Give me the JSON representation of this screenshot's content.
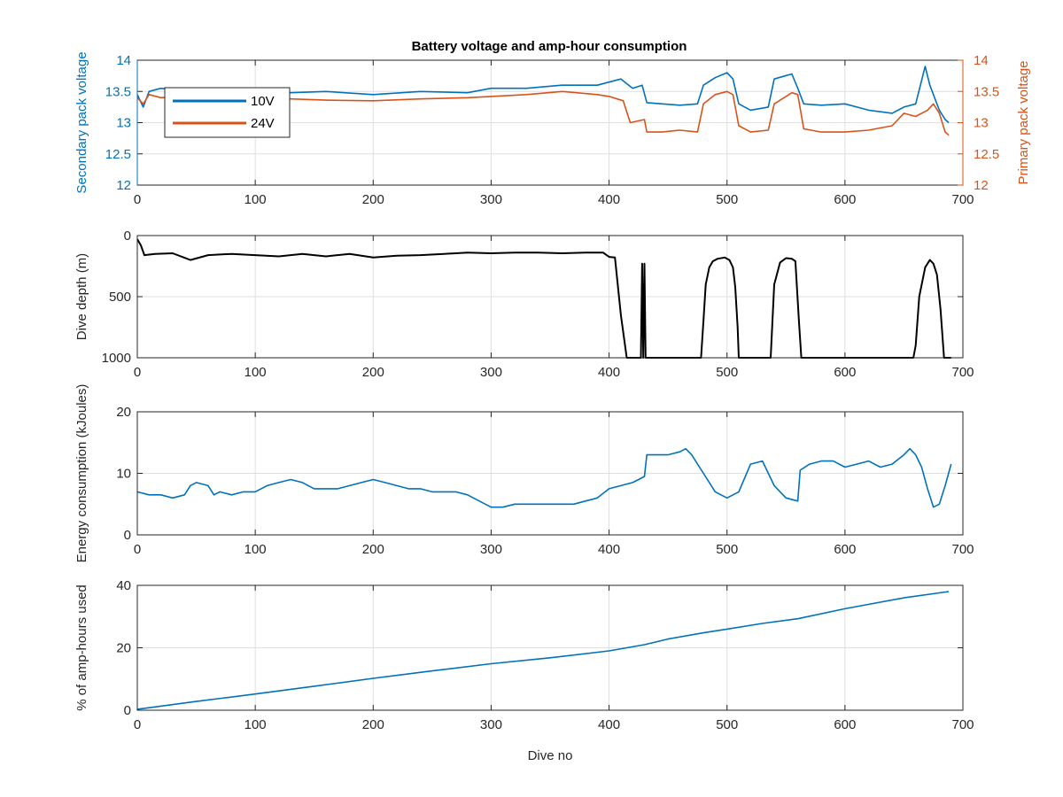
{
  "figure": {
    "title": "Battery voltage and amp-hour consumption"
  },
  "colors": {
    "secondary": "#0072BD",
    "primary": "#D95319",
    "depth": "#000000",
    "axes": "#262626",
    "grid": "#dfdfdf"
  },
  "chart_data": [
    {
      "type": "line",
      "id": "voltage",
      "title": "Battery voltage and amp-hour consumption",
      "xlabel": "",
      "ylabel": "Secondary pack voltage",
      "ylabel_right": "Primary pack voltage",
      "xlim": [
        0,
        700
      ],
      "ylim": [
        12,
        14
      ],
      "ylim_right": [
        12,
        14
      ],
      "xticks": [
        "0",
        "100",
        "200",
        "300",
        "400",
        "500",
        "600",
        "700"
      ],
      "yticks": [
        "12",
        "12.5",
        "13",
        "13.5",
        "14"
      ],
      "yticks_right": [
        "12",
        "12.5",
        "13",
        "13.5",
        "14"
      ],
      "grid": true,
      "legend_position": "top-left",
      "series": [
        {
          "name": "10V",
          "axis": "left",
          "x": [
            0,
            5,
            10,
            20,
            40,
            60,
            80,
            100,
            130,
            160,
            200,
            240,
            280,
            300,
            330,
            360,
            390,
            400,
            410,
            420,
            428,
            432,
            445,
            460,
            475,
            480,
            490,
            500,
            505,
            510,
            520,
            535,
            540,
            555,
            560,
            565,
            580,
            600,
            620,
            640,
            650,
            660,
            668,
            672,
            676,
            680,
            685,
            688
          ],
          "y": [
            13.45,
            13.25,
            13.5,
            13.55,
            13.5,
            13.5,
            13.52,
            13.5,
            13.48,
            13.5,
            13.45,
            13.5,
            13.48,
            13.55,
            13.55,
            13.6,
            13.6,
            13.65,
            13.7,
            13.55,
            13.6,
            13.32,
            13.3,
            13.28,
            13.3,
            13.6,
            13.72,
            13.8,
            13.7,
            13.3,
            13.2,
            13.25,
            13.7,
            13.78,
            13.55,
            13.3,
            13.28,
            13.3,
            13.2,
            13.15,
            13.25,
            13.3,
            13.9,
            13.6,
            13.4,
            13.2,
            13.05,
            13.0
          ]
        },
        {
          "name": "24V",
          "axis": "right",
          "x": [
            0,
            5,
            10,
            20,
            40,
            60,
            80,
            100,
            130,
            160,
            200,
            240,
            280,
            300,
            330,
            360,
            390,
            400,
            412,
            418,
            430,
            432,
            445,
            460,
            475,
            480,
            490,
            500,
            505,
            510,
            520,
            535,
            540,
            555,
            560,
            565,
            580,
            600,
            620,
            640,
            650,
            660,
            670,
            675,
            680,
            685,
            688
          ],
          "y": [
            13.4,
            13.3,
            13.45,
            13.4,
            13.42,
            13.4,
            13.42,
            13.4,
            13.38,
            13.36,
            13.35,
            13.38,
            13.4,
            13.42,
            13.45,
            13.5,
            13.45,
            13.42,
            13.35,
            13.0,
            13.05,
            12.85,
            12.85,
            12.88,
            12.85,
            13.3,
            13.45,
            13.5,
            13.45,
            12.95,
            12.85,
            12.88,
            13.3,
            13.48,
            13.45,
            12.9,
            12.85,
            12.85,
            12.88,
            12.95,
            13.15,
            13.1,
            13.2,
            13.3,
            13.15,
            12.85,
            12.8
          ]
        }
      ]
    },
    {
      "type": "line",
      "id": "depth",
      "xlabel": "",
      "ylabel": "Dive depth (m)",
      "xlim": [
        0,
        700
      ],
      "ylim": [
        0,
        1000
      ],
      "y_reversed": true,
      "xticks": [
        "0",
        "100",
        "200",
        "300",
        "400",
        "500",
        "600",
        "700"
      ],
      "yticks": [
        "0",
        "500",
        "1000"
      ],
      "grid": true,
      "series": [
        {
          "name": "",
          "x": [
            0,
            3,
            6,
            15,
            30,
            45,
            60,
            80,
            100,
            120,
            140,
            160,
            180,
            200,
            220,
            240,
            260,
            280,
            300,
            320,
            340,
            360,
            380,
            395,
            400,
            405,
            410,
            415,
            425,
            427,
            428,
            429,
            430,
            431,
            435,
            460,
            478,
            480,
            482,
            485,
            488,
            492,
            498,
            502,
            505,
            507,
            509,
            510,
            511,
            530,
            537,
            540,
            545,
            550,
            555,
            558,
            561,
            563,
            565,
            600,
            640,
            658,
            660,
            663,
            668,
            672,
            675,
            678,
            681,
            684,
            690
          ],
          "y": [
            30,
            80,
            160,
            150,
            145,
            200,
            160,
            150,
            160,
            170,
            150,
            170,
            150,
            180,
            165,
            160,
            150,
            140,
            145,
            140,
            140,
            145,
            140,
            140,
            175,
            180,
            650,
            1000,
            1000,
            1000,
            230,
            1000,
            230,
            1000,
            1000,
            1000,
            1000,
            700,
            400,
            260,
            210,
            190,
            180,
            200,
            260,
            420,
            750,
            1000,
            1000,
            1000,
            1000,
            400,
            220,
            185,
            190,
            210,
            700,
            1000,
            1000,
            1000,
            1000,
            1000,
            900,
            500,
            260,
            200,
            230,
            320,
            600,
            1000,
            1000
          ]
        }
      ]
    },
    {
      "type": "line",
      "id": "energy",
      "xlabel": "",
      "ylabel": "Energy consumption (kJoules)",
      "xlim": [
        0,
        700
      ],
      "ylim": [
        0,
        20
      ],
      "xticks": [
        "0",
        "100",
        "200",
        "300",
        "400",
        "500",
        "600",
        "700"
      ],
      "yticks": [
        "0",
        "10",
        "20"
      ],
      "grid": true,
      "series": [
        {
          "name": "",
          "x": [
            0,
            10,
            20,
            30,
            40,
            45,
            50,
            60,
            65,
            70,
            80,
            90,
            100,
            110,
            120,
            130,
            140,
            150,
            160,
            170,
            180,
            190,
            200,
            210,
            220,
            230,
            240,
            250,
            260,
            270,
            280,
            290,
            300,
            310,
            320,
            330,
            340,
            350,
            360,
            370,
            380,
            390,
            400,
            410,
            420,
            425,
            430,
            432,
            440,
            450,
            460,
            465,
            470,
            480,
            490,
            500,
            510,
            520,
            530,
            540,
            550,
            560,
            562,
            570,
            580,
            590,
            600,
            610,
            620,
            630,
            640,
            650,
            655,
            660,
            665,
            670,
            675,
            680,
            685,
            690
          ],
          "y": [
            7,
            6.5,
            6.5,
            6,
            6.5,
            8,
            8.5,
            8,
            6.5,
            7,
            6.5,
            7,
            7,
            8,
            8.5,
            9,
            8.5,
            7.5,
            7.5,
            7.5,
            8,
            8.5,
            9,
            8.5,
            8,
            7.5,
            7.5,
            7,
            7,
            7,
            6.5,
            5.5,
            4.5,
            4.5,
            5,
            5,
            5,
            5,
            5,
            5,
            5.5,
            6,
            7.5,
            8,
            8.5,
            9,
            9.5,
            13,
            13,
            13,
            13.5,
            14,
            13,
            10,
            7,
            6,
            7,
            11.5,
            12,
            8,
            6,
            5.5,
            10.5,
            11.5,
            12,
            12,
            11,
            11.5,
            12,
            11,
            11.5,
            13,
            14,
            13,
            11,
            7.5,
            4.5,
            5,
            8,
            11.5
          ]
        }
      ]
    },
    {
      "type": "line",
      "id": "amphours",
      "xlabel": "Dive no",
      "ylabel": "% of amp-hours used",
      "xlim": [
        0,
        700
      ],
      "ylim": [
        0,
        40
      ],
      "xticks": [
        "0",
        "100",
        "200",
        "300",
        "400",
        "500",
        "600",
        "700"
      ],
      "yticks": [
        "0",
        "20",
        "40"
      ],
      "grid": true,
      "series": [
        {
          "name": "",
          "x": [
            0,
            50,
            100,
            150,
            200,
            250,
            300,
            350,
            400,
            430,
            450,
            480,
            500,
            530,
            560,
            600,
            650,
            688
          ],
          "y": [
            0.3,
            2.8,
            5.2,
            7.7,
            10.2,
            12.6,
            14.9,
            16.8,
            19,
            21,
            22.8,
            24.8,
            26,
            27.8,
            29.3,
            32.5,
            36,
            38
          ]
        }
      ]
    }
  ]
}
